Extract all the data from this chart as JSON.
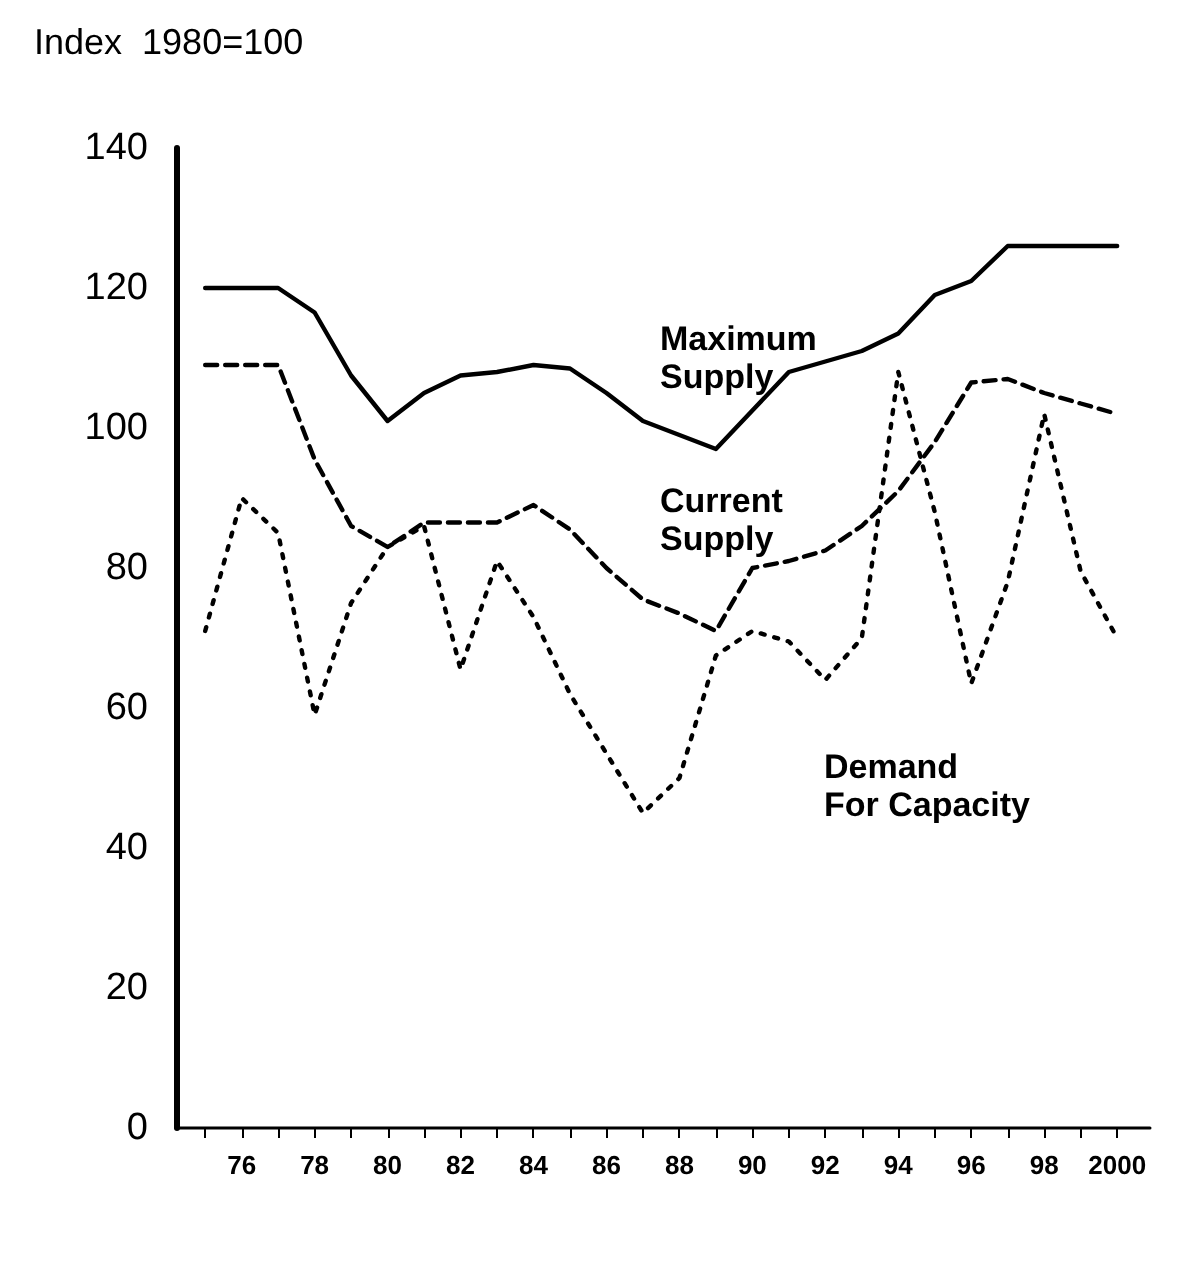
{
  "chart_data": {
    "type": "line",
    "ylabel": "Index  1980=100",
    "x": [
      1975,
      1976,
      1977,
      1978,
      1979,
      1980,
      1981,
      1982,
      1983,
      1984,
      1985,
      1986,
      1987,
      1988,
      1989,
      1990,
      1991,
      1992,
      1993,
      1994,
      1995,
      1996,
      1997,
      1998,
      1999,
      2000
    ],
    "series": [
      {
        "name": "Maximum\nSupply",
        "color": "#000000",
        "line_style": "solid",
        "values": [
          120,
          120,
          120,
          116.5,
          107.5,
          101,
          105,
          107.5,
          108,
          109,
          108.5,
          105,
          101,
          99,
          97,
          102.5,
          108,
          109.5,
          111,
          113.5,
          119,
          121,
          126,
          126,
          126,
          126
        ]
      },
      {
        "name": "Current\nSupply",
        "color": "#000000",
        "line_style": "dashed",
        "values": [
          109,
          109,
          109,
          95.5,
          86,
          83,
          86.5,
          86.5,
          86.5,
          89,
          85.5,
          80,
          75.5,
          73.5,
          71,
          80,
          81,
          82.5,
          86,
          91,
          98,
          106.5,
          107,
          105,
          103.5,
          102
        ]
      },
      {
        "name": "Demand\nFor Capacity",
        "color": "#000000",
        "line_style": "dotted",
        "values": [
          71,
          90,
          85,
          59,
          75,
          83,
          86,
          65.5,
          81,
          73,
          62,
          53.5,
          45,
          50,
          67.5,
          71,
          69.5,
          64,
          70,
          108,
          88,
          63.5,
          78,
          102,
          79.5,
          70
        ]
      }
    ],
    "xlim": [
      1974.2,
      2000.9
    ],
    "xticks": [
      {
        "value": 1975,
        "label": null
      },
      {
        "value": 1976,
        "label": "76"
      },
      {
        "value": 1977,
        "label": null
      },
      {
        "value": 1978,
        "label": "78"
      },
      {
        "value": 1979,
        "label": null
      },
      {
        "value": 1980,
        "label": "80"
      },
      {
        "value": 1981,
        "label": null
      },
      {
        "value": 1982,
        "label": "82"
      },
      {
        "value": 1983,
        "label": null
      },
      {
        "value": 1984,
        "label": "84"
      },
      {
        "value": 1985,
        "label": null
      },
      {
        "value": 1986,
        "label": "86"
      },
      {
        "value": 1987,
        "label": null
      },
      {
        "value": 1988,
        "label": "88"
      },
      {
        "value": 1989,
        "label": null
      },
      {
        "value": 1990,
        "label": "90"
      },
      {
        "value": 1991,
        "label": null
      },
      {
        "value": 1992,
        "label": "92"
      },
      {
        "value": 1993,
        "label": null
      },
      {
        "value": 1994,
        "label": "94"
      },
      {
        "value": 1995,
        "label": null
      },
      {
        "value": 1996,
        "label": "96"
      },
      {
        "value": 1997,
        "label": null
      },
      {
        "value": 1998,
        "label": "98"
      },
      {
        "value": 1999,
        "label": null
      },
      {
        "value": 2000,
        "label": "2000"
      }
    ],
    "ylim": [
      0,
      140
    ],
    "yticks": [
      0,
      20,
      40,
      60,
      80,
      100,
      120,
      140
    ],
    "grid": false,
    "marker": "none"
  }
}
